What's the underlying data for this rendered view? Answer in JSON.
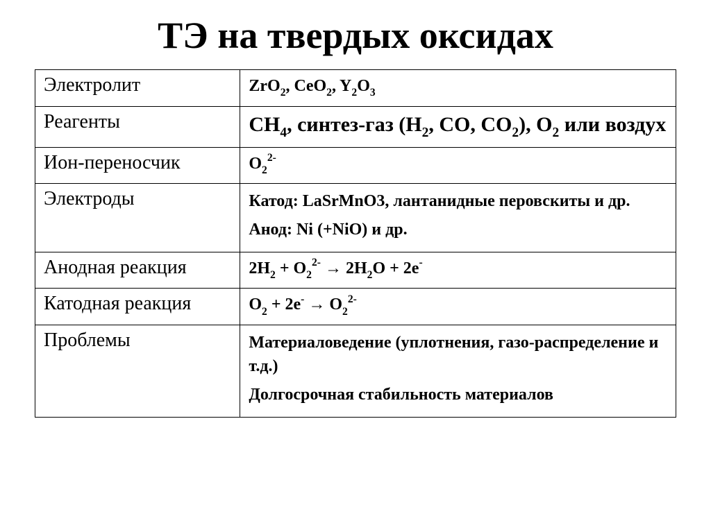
{
  "title": "ТЭ на твердых оксидах",
  "table": {
    "col_widths_pct": [
      32,
      68
    ],
    "border_color": "#000000",
    "background_color": "#ffffff",
    "text_color": "#000000",
    "label_fontsize_pt": 21,
    "value_fontsize_pt": 18,
    "value_large_fontsize_pt": 22,
    "rows": [
      {
        "label": "Электролит",
        "value_html": "ZrO<span class='sub'>2</span>, CeO<span class='sub'>2</span>, Y<span class='sub'>2</span>O<span class='sub'>3</span>",
        "size": "normal"
      },
      {
        "label": "Реагенты",
        "value_html": "CH<span class='sub'>4</span>, синтез-газ (H<span class='sub'>2</span>, CO, CO<span class='sub'>2</span>), O<span class='sub'>2</span> или воздух",
        "size": "large"
      },
      {
        "label": "Ион-переносчик",
        "value_html": "O<span class='sub'>2</span><span class='sup'>2-</span>",
        "size": "normal"
      },
      {
        "label": "Электроды",
        "value_html": "<div class='para'>Катод: LaSrMnO3, лантанидные перовскиты и др.</div><div class='para'>Анод: Ni (+NiO) и др.</div>",
        "size": "normal"
      },
      {
        "label": "Анодная реакция",
        "value_html": "2H<span class='sub'>2</span> + O<span class='sub'>2</span><span class='sup'>2-</span> &rarr; 2H<span class='sub'>2</span>O + 2e<span class='sup'>-</span>",
        "size": "normal"
      },
      {
        "label": "Катодная реакция",
        "value_html": "O<span class='sub'>2</span> + 2e<span class='sup'>-</span> &rarr; O<span class='sub'>2</span><span class='sup'>2-</span>",
        "size": "normal"
      },
      {
        "label": "Проблемы",
        "value_html": "<div class='para'>Материаловедение (уплотнения, газо-распределение и т.д.)</div><div class='para'>Долгосрочная стабильность материалов</div>",
        "size": "normal"
      }
    ]
  }
}
